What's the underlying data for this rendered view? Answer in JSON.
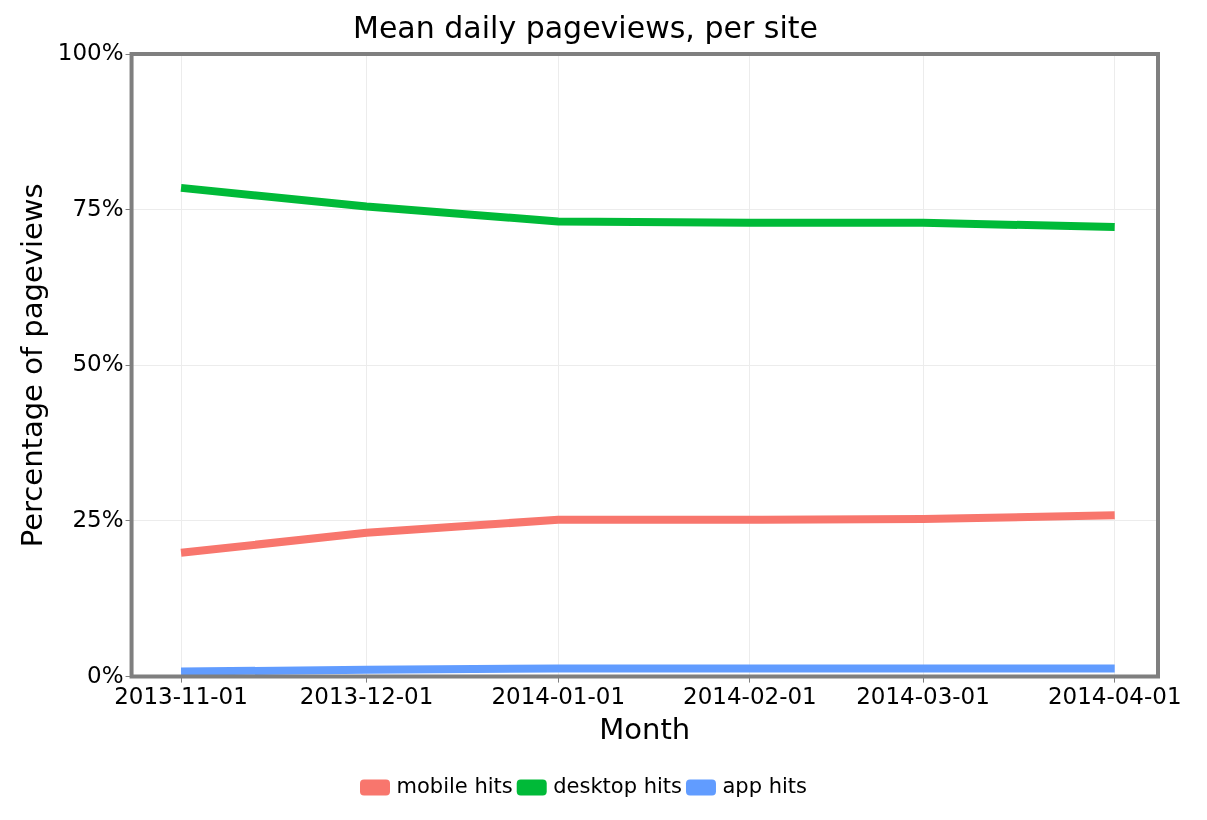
{
  "chart_data": {
    "type": "line",
    "title": "Mean daily pageviews, per site",
    "xlabel": "Month",
    "ylabel": "Percentage of pageviews",
    "x": [
      "2013-11-01",
      "2013-12-01",
      "2014-01-01",
      "2014-02-01",
      "2014-03-01",
      "2014-04-01"
    ],
    "series": [
      {
        "name": "mobile hits",
        "color": "#f8766d",
        "values": [
          19.9,
          23.1,
          25.2,
          25.2,
          25.3,
          25.9
        ]
      },
      {
        "name": "desktop hits",
        "color": "#00ba38",
        "values": [
          78.5,
          75.5,
          73.1,
          72.9,
          72.9,
          72.2
        ]
      },
      {
        "name": "app hits",
        "color": "#619cff",
        "values": [
          0.8,
          1.1,
          1.3,
          1.3,
          1.3,
          1.3
        ]
      }
    ],
    "xlim": [
      "2013-10-24",
      "2014-04-08"
    ],
    "xticks": [
      "2013-11-01",
      "2013-12-01",
      "2014-01-01",
      "2014-02-01",
      "2014-03-01",
      "2014-04-01"
    ],
    "ylim": [
      0,
      100
    ],
    "yticks": [
      {
        "value": 0,
        "label": "0%"
      },
      {
        "value": 25,
        "label": "25%"
      },
      {
        "value": 50,
        "label": "50%"
      },
      {
        "value": 75,
        "label": "75%"
      },
      {
        "value": 100,
        "label": "100%"
      }
    ],
    "grid": true,
    "legend": "bottom",
    "marker": "none",
    "line_style": "solid"
  }
}
